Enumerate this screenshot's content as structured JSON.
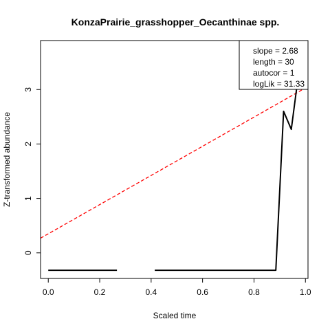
{
  "chart_data": {
    "type": "line",
    "title": "KonzaPrairie_grasshopper_Oecanthinae spp.",
    "xlabel": "Scaled time",
    "ylabel": "Z-transformed abundance",
    "xlim": [
      -0.03,
      1.01
    ],
    "ylim": [
      -0.47,
      3.9
    ],
    "xticks": [
      0.0,
      0.2,
      0.4,
      0.6,
      0.8,
      1.0
    ],
    "xtick_labels": [
      "0.0",
      "0.2",
      "0.4",
      "0.6",
      "0.8",
      "1.0"
    ],
    "yticks": [
      0,
      1,
      2,
      3
    ],
    "ytick_labels": [
      "0",
      "1",
      "2",
      "3"
    ],
    "grid": false,
    "series": [
      {
        "color": "#000000",
        "style": "solid",
        "segments": [
          [
            [
              0.0,
              -0.32
            ],
            [
              0.267,
              -0.32
            ]
          ],
          [
            [
              0.414,
              -0.32
            ],
            [
              0.885,
              -0.32
            ],
            [
              0.915,
              2.6
            ],
            [
              0.945,
              2.27
            ],
            [
              0.975,
              3.35
            ]
          ]
        ]
      }
    ],
    "trend_line": {
      "color": "#ff0000",
      "style": "dashed",
      "intercept": 0.35,
      "slope": 2.68
    },
    "legend": {
      "position": "top-right",
      "entries": [
        "slope = 2.68",
        "length = 30",
        "autocor = 1",
        "logLik = 31.33"
      ]
    }
  }
}
